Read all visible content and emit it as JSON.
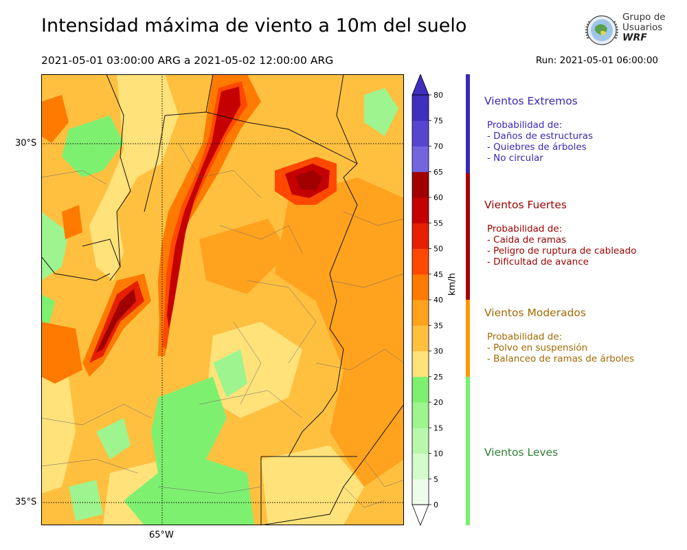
{
  "header": {
    "title": "Intensidad máxima de viento a 10m del suelo",
    "period": "2021-05-01 03:00:00 ARG  a  2021-05-02 12:00:00 ARG",
    "run": "Run: 2021-05-01 06:00:00"
  },
  "logo": {
    "line1": "Grupo de",
    "line2": "Usuarios",
    "line3": "WRF"
  },
  "map": {
    "lat_ticks": [
      "30°S",
      "35°S"
    ],
    "lon_ticks": [
      "65°W"
    ]
  },
  "colorbar": {
    "unit": "km/h",
    "ticks": [
      "0",
      "5",
      "10",
      "15",
      "20",
      "25",
      "30",
      "35",
      "40",
      "45",
      "50",
      "55",
      "60",
      "65",
      "70",
      "75",
      "80"
    ],
    "colors": [
      "#eefde9",
      "#d4fbcb",
      "#b9f8ac",
      "#9ef48e",
      "#7ef070",
      "#ffe27a",
      "#ffc040",
      "#ffa21e",
      "#ff7a00",
      "#ff4800",
      "#e61f00",
      "#c40000",
      "#a00000",
      "#7364e0",
      "#5646cf",
      "#3f2fbd"
    ]
  },
  "categories": [
    {
      "title": "Vientos Extremos",
      "lines": [
        "Probabilidad de:",
        "- Daños de estructuras",
        "- Quiebres de árboles",
        "- No circular"
      ],
      "color": "#3a28b4"
    },
    {
      "title": "Vientos Fuertes",
      "lines": [
        "Probabilidad de:",
        "- Caida de ramas",
        "- Peligro de ruptura de cableado",
        "- Dificultad de avance"
      ],
      "color": "#9a0000"
    },
    {
      "title": "Vientos Moderados",
      "lines": [
        "Probabilidad de:",
        "- Polvo en suspensión",
        "- Balanceo de ramas de árboles"
      ],
      "color": "#a06a00"
    },
    {
      "title": "Vientos Leves",
      "lines": [],
      "color": "#2e7d32"
    }
  ],
  "category_bar_colors": [
    "#3a28b4",
    "#a80000",
    "#ff9900",
    "#77f06d"
  ]
}
